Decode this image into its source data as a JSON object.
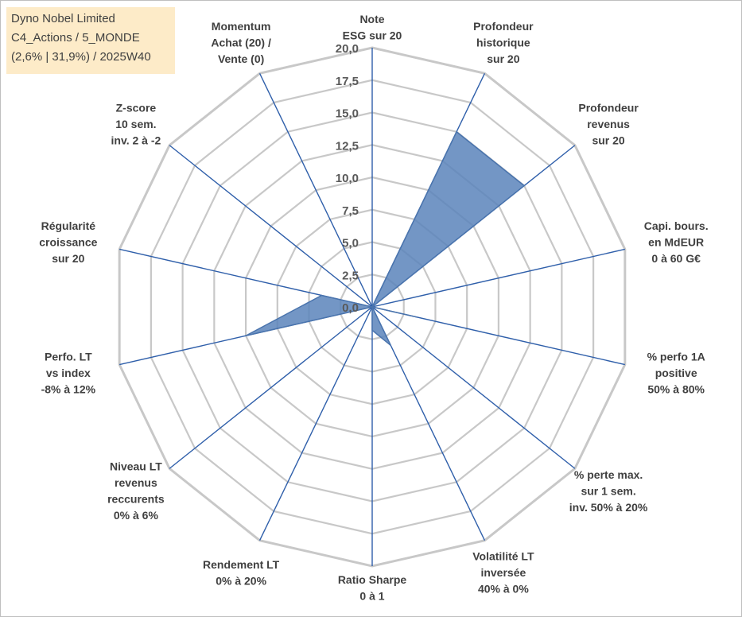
{
  "header": {
    "company": "Dyno Nobel Limited",
    "line2": "C4_Actions / 5_MONDE",
    "line3": "(2,6% | 31,9%) / 2025W40"
  },
  "colors": {
    "grid": "#c8c8c8",
    "spoke": "#2f5faa",
    "series_fill": "#5b84bb",
    "series_stroke": "#4a74ad",
    "title_bg": "#fdebc8"
  },
  "chart_data": {
    "type": "radar",
    "rmin": 0,
    "rmax": 20,
    "step": 2.5,
    "ticks": [
      "0,0",
      "2,5",
      "5,0",
      "7,5",
      "10,0",
      "12,5",
      "15,0",
      "17,5",
      "20,0"
    ],
    "axes": [
      {
        "label": [
          "Note",
          "ESG sur 20"
        ]
      },
      {
        "label": [
          "Profondeur",
          "historique",
          "sur 20"
        ]
      },
      {
        "label": [
          "Profondeur",
          "revenus",
          "sur 20"
        ]
      },
      {
        "label": [
          "Capi. bours.",
          "en MdEUR",
          "0 à 60 G€"
        ]
      },
      {
        "label": [
          "% perfo 1A",
          "positive",
          "50% à 80%"
        ]
      },
      {
        "label": [
          "% perte max.",
          "sur 1 sem.",
          "inv. 50% à 20%"
        ]
      },
      {
        "label": [
          "Volatilité LT",
          "inversée",
          "40% à 0%"
        ]
      },
      {
        "label": [
          "Ratio Sharpe",
          "0 à 1"
        ]
      },
      {
        "label": [
          "Rendement LT",
          "0% à 20%"
        ]
      },
      {
        "label": [
          "Niveau LT",
          "revenus",
          "reccurents",
          "0% à 6%"
        ]
      },
      {
        "label": [
          "Perfo. LT",
          "vs index",
          "-8% à 12%"
        ]
      },
      {
        "label": [
          "Régularité",
          "croissance",
          "sur 20"
        ]
      },
      {
        "label": [
          "Z-score",
          "10 sem.",
          "inv. 2 à -2"
        ]
      },
      {
        "label": [
          "Momentum",
          "Achat (20) /",
          "Vente (0)"
        ]
      }
    ],
    "series": [
      {
        "values": [
          0,
          15,
          15,
          0,
          3.5,
          0,
          3.3,
          1.8,
          0,
          0,
          10,
          4,
          0,
          0
        ]
      }
    ]
  }
}
